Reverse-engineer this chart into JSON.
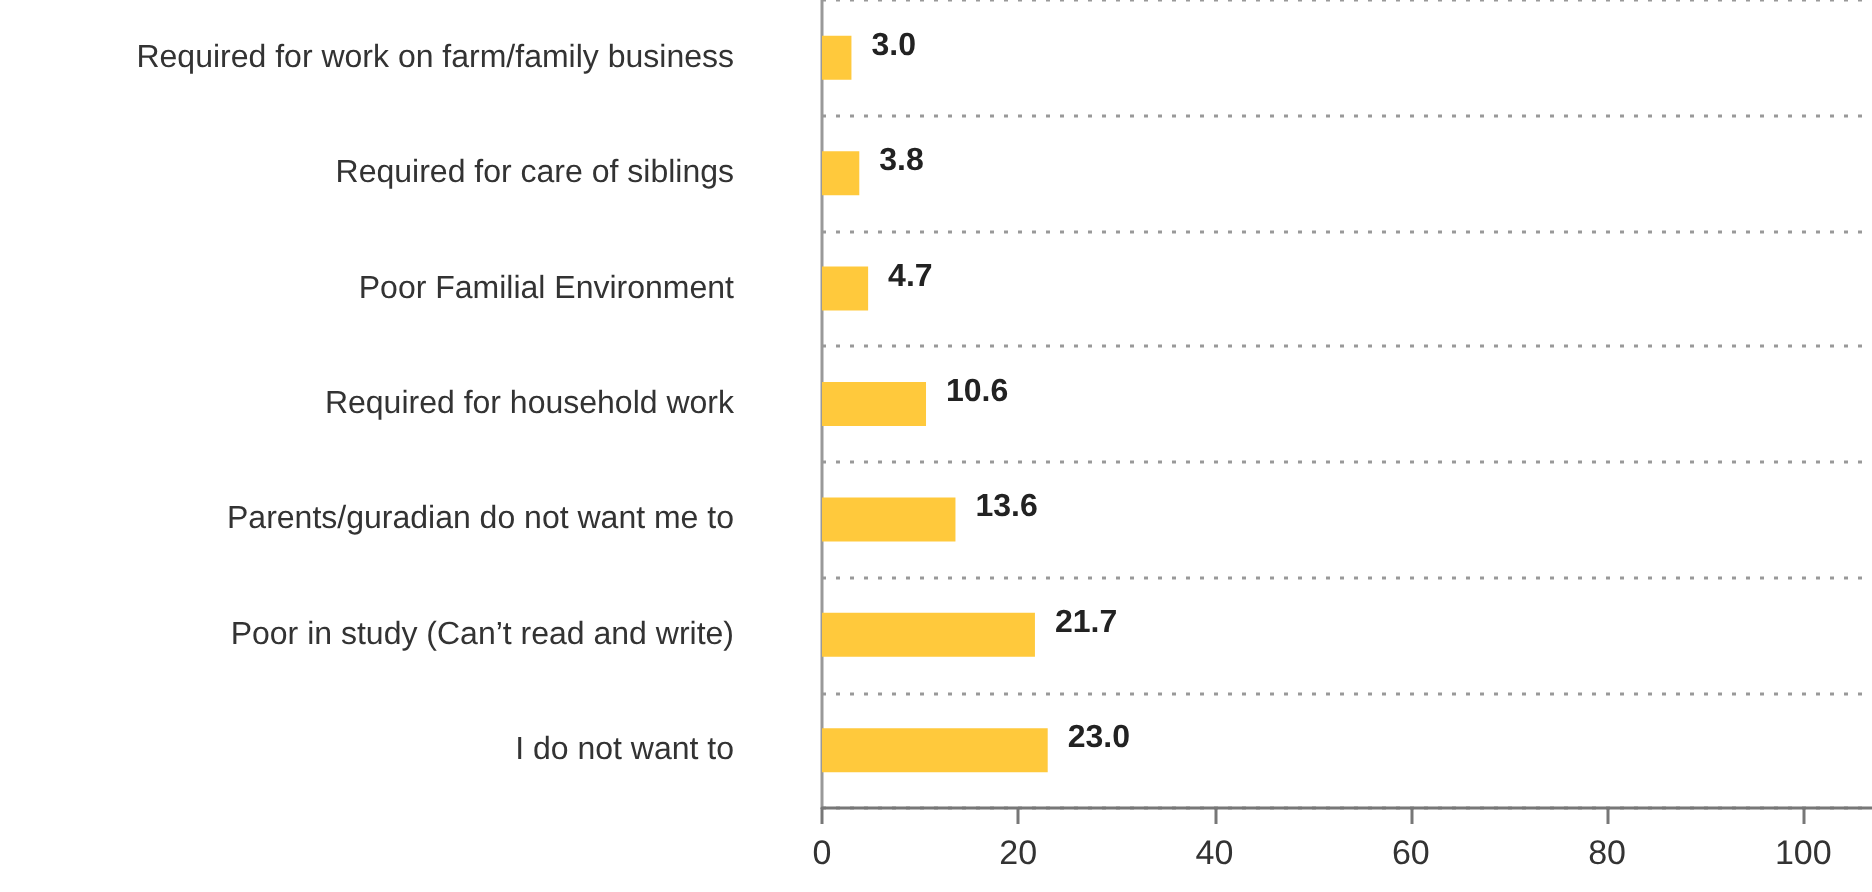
{
  "chart_data": {
    "type": "bar",
    "orientation": "horizontal",
    "categories": [
      "Required for work on farm/family business",
      "Required for care of siblings",
      "Poor Familial Environment",
      "Required for household work",
      "Parents/guradian do not want me to",
      "Poor in study (Can’t read and write)",
      "I do not want to"
    ],
    "values": [
      3.0,
      3.8,
      4.7,
      10.6,
      13.6,
      21.7,
      23.0
    ],
    "color": "#ffc93c",
    "value_labels": [
      "3.0",
      "3.8",
      "4.7",
      "10.6",
      "13.6",
      "21.7",
      "23.0"
    ],
    "xlim": [
      0,
      107
    ],
    "xticks": [
      0,
      20,
      40,
      60,
      80,
      100
    ],
    "grid": "y"
  }
}
